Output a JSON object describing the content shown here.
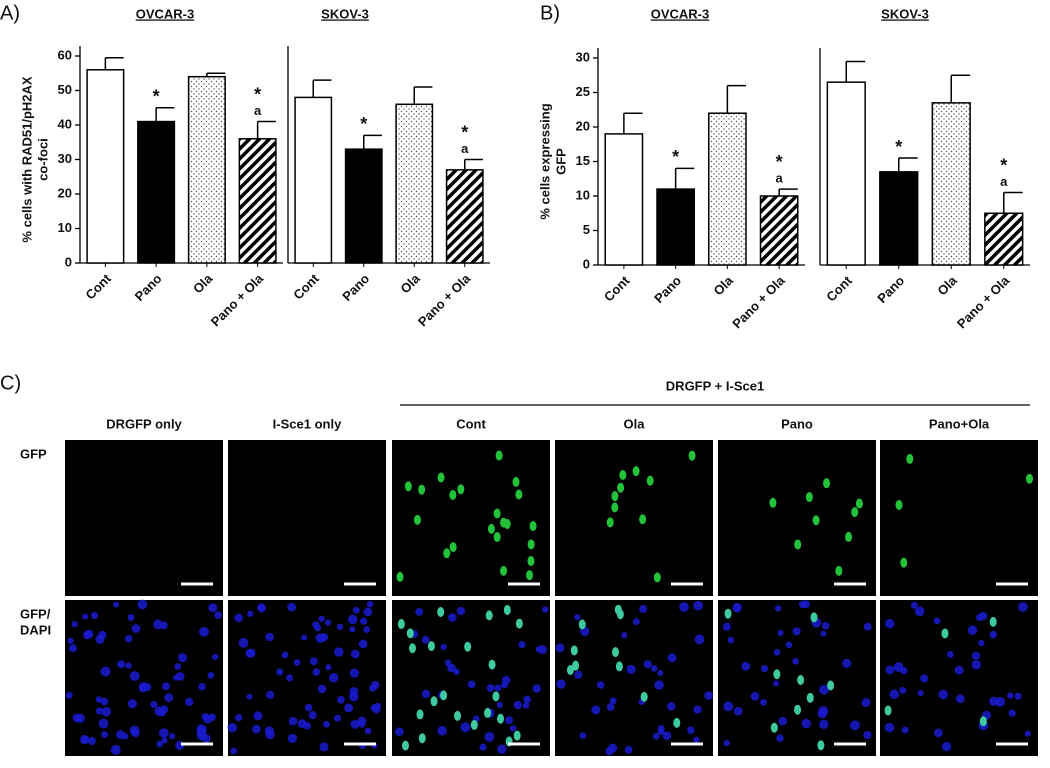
{
  "panels": [
    "A)",
    "B)",
    "C)"
  ],
  "chart_data": [
    {
      "type": "bar",
      "title": "OVCAR-3",
      "ylabel": [
        "% cells with RAD51/pH2AX",
        "co-foci"
      ],
      "categories": [
        "Cont",
        "Pano",
        "Ola",
        "Pano + Ola"
      ],
      "values": [
        56,
        41,
        54,
        36
      ],
      "errors": [
        3.5,
        4,
        1,
        5
      ],
      "bar_styles": [
        "white",
        "black",
        "dots",
        "hatch"
      ],
      "stars": [
        null,
        "*",
        null,
        "*"
      ],
      "letters": [
        null,
        null,
        null,
        "a"
      ],
      "ylim": [
        0,
        60
      ],
      "yticks": [
        0,
        10,
        20,
        30,
        40,
        50,
        60
      ]
    },
    {
      "type": "bar",
      "title": "SKOV-3",
      "categories": [
        "Cont",
        "Pano",
        "Ola",
        "Pano + Ola"
      ],
      "values": [
        48,
        33,
        46,
        27
      ],
      "errors": [
        5,
        4,
        5,
        3
      ],
      "bar_styles": [
        "white",
        "black",
        "dots",
        "hatch"
      ],
      "stars": [
        null,
        "*",
        null,
        "*"
      ],
      "letters": [
        null,
        null,
        null,
        "a"
      ],
      "ylim": [
        0,
        60
      ]
    },
    {
      "type": "bar",
      "title": "OVCAR-3",
      "ylabel": [
        "% cells expressing",
        "GFP"
      ],
      "categories": [
        "Cont",
        "Pano",
        "Ola",
        "Pano + Ola"
      ],
      "values": [
        19,
        11,
        22,
        10
      ],
      "errors": [
        3,
        3,
        4,
        1
      ],
      "bar_styles": [
        "white",
        "black",
        "dots",
        "hatch"
      ],
      "stars": [
        null,
        "*",
        null,
        "*"
      ],
      "letters": [
        null,
        null,
        null,
        "a"
      ],
      "ylim": [
        0,
        30
      ],
      "yticks": [
        0,
        5,
        10,
        15,
        20,
        25,
        30
      ]
    },
    {
      "type": "bar",
      "title": "SKOV-3",
      "categories": [
        "Cont",
        "Pano",
        "Ola",
        "Pano + Ola"
      ],
      "values": [
        26.5,
        13.5,
        23.5,
        7.5
      ],
      "errors": [
        3,
        2,
        4,
        3
      ],
      "bar_styles": [
        "white",
        "black",
        "dots",
        "hatch"
      ],
      "stars": [
        null,
        "*",
        null,
        "*"
      ],
      "letters": [
        null,
        null,
        null,
        "a"
      ],
      "ylim": [
        0,
        30
      ]
    }
  ],
  "imaging": {
    "group_label": "DRGFP + I-Sce1",
    "columns": [
      "DRGFP only",
      "I-Sce1 only",
      "Cont",
      "Ola",
      "Pano",
      "Pano+Ola"
    ],
    "rows": [
      [
        "GFP"
      ],
      [
        "GFP/",
        "DAPI"
      ]
    ]
  }
}
